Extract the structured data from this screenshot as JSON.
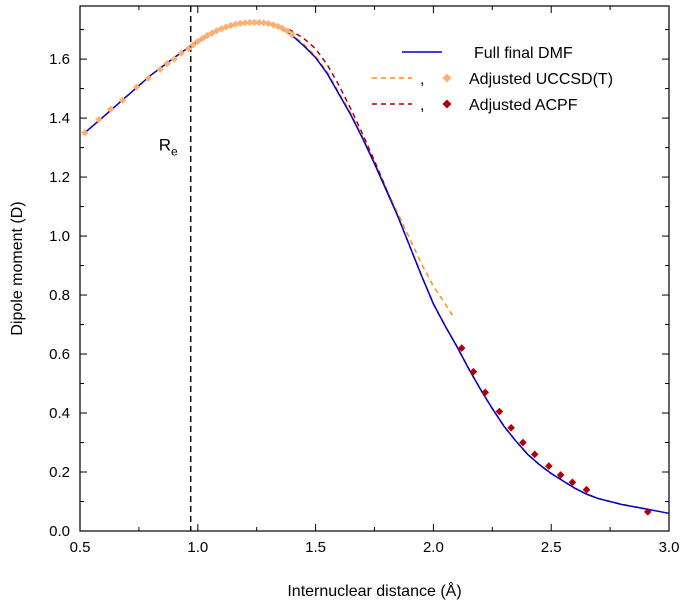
{
  "chart_data": {
    "type": "line",
    "xlabel": "Internuclear distance (Å)",
    "ylabel": "Dipole moment (D)",
    "xlim": [
      0.5,
      3.0
    ],
    "ylim": [
      0.0,
      1.78
    ],
    "x_ticks": [
      "0.5",
      "1.0",
      "1.5",
      "2.0",
      "2.5",
      "3.0"
    ],
    "y_ticks": [
      "0.0",
      "0.2",
      "0.4",
      "0.6",
      "0.8",
      "1.0",
      "1.2",
      "1.4",
      "1.6"
    ],
    "grid": false,
    "legend_position": "top-right",
    "legend": {
      "full": "Full final DMF",
      "comma1": ",",
      "uccsd": "Adjusted UCCSD(T)",
      "comma2": ",",
      "acpf": "Adjusted ACPF"
    },
    "colors": {
      "full": "#0000cc",
      "uccsd_line": "#ff8c1a",
      "uccsd_marker": "#ffb070",
      "acpf_line": "#b00000",
      "acpf_marker": "#b00000"
    },
    "annotation": {
      "label": "R",
      "subscript": "e",
      "x": 0.97
    },
    "series": [
      {
        "name": "Full final DMF",
        "style": "solid",
        "x": [
          0.52,
          0.6,
          0.7,
          0.8,
          0.9,
          0.97,
          1.05,
          1.1,
          1.15,
          1.2,
          1.25,
          1.3,
          1.35,
          1.4,
          1.45,
          1.5,
          1.55,
          1.6,
          1.65,
          1.7,
          1.75,
          1.8,
          1.85,
          1.9,
          1.95,
          2.0,
          2.05,
          2.1,
          2.15,
          2.2,
          2.25,
          2.3,
          2.35,
          2.4,
          2.45,
          2.5,
          2.55,
          2.6,
          2.65,
          2.7,
          2.8,
          2.9,
          3.0
        ],
        "y": [
          1.35,
          1.405,
          1.475,
          1.545,
          1.605,
          1.645,
          1.685,
          1.703,
          1.715,
          1.722,
          1.724,
          1.72,
          1.705,
          1.68,
          1.645,
          1.605,
          1.55,
          1.48,
          1.41,
          1.33,
          1.245,
          1.155,
          1.065,
          0.965,
          0.865,
          0.77,
          0.695,
          0.625,
          0.55,
          0.48,
          0.415,
          0.355,
          0.305,
          0.26,
          0.225,
          0.195,
          0.17,
          0.145,
          0.125,
          0.11,
          0.09,
          0.075,
          0.06
        ]
      },
      {
        "name": "Adjusted UCCSD(T)",
        "style": "dashed",
        "x": [
          0.52,
          0.6,
          0.7,
          0.8,
          0.9,
          0.97,
          1.05,
          1.1,
          1.15,
          1.2,
          1.25,
          1.3,
          1.35,
          1.4,
          1.45,
          1.5,
          1.55,
          1.6,
          1.65,
          1.7,
          1.75,
          1.8,
          1.85,
          1.9,
          1.95,
          2.0,
          2.05,
          2.09
        ],
        "y": [
          1.35,
          1.405,
          1.475,
          1.545,
          1.605,
          1.645,
          1.685,
          1.703,
          1.715,
          1.722,
          1.724,
          1.72,
          1.706,
          1.683,
          1.65,
          1.61,
          1.555,
          1.485,
          1.415,
          1.335,
          1.25,
          1.16,
          1.075,
          0.99,
          0.905,
          0.83,
          0.77,
          0.72
        ]
      },
      {
        "name": "Adjusted ACPF",
        "style": "dashed",
        "x": [
          1.35,
          1.4,
          1.45,
          1.5,
          1.55,
          1.6,
          1.65,
          1.7,
          1.75,
          1.8,
          1.85,
          1.9,
          1.95,
          2.0,
          2.05,
          2.1,
          2.15,
          2.2,
          2.25,
          2.3,
          2.35,
          2.4,
          2.45,
          2.5,
          2.55,
          2.6,
          2.65,
          2.7,
          2.8,
          2.9
        ],
        "y": [
          1.712,
          1.695,
          1.67,
          1.635,
          1.58,
          1.51,
          1.43,
          1.345,
          1.255,
          1.16,
          1.065,
          0.965,
          0.865,
          0.77,
          0.695,
          0.625,
          0.55,
          0.48,
          0.415,
          0.355,
          0.305,
          0.26,
          0.225,
          0.195,
          0.17,
          0.145,
          0.125,
          0.11,
          0.09,
          0.075
        ]
      },
      {
        "name": "Adjusted UCCSD(T) points",
        "style": "markers",
        "x": [
          0.52,
          0.58,
          0.63,
          0.68,
          0.74,
          0.79,
          0.84,
          0.87,
          0.9,
          0.93,
          0.96,
          0.98,
          1.0,
          1.02,
          1.04,
          1.06,
          1.08,
          1.1,
          1.12,
          1.14,
          1.16,
          1.18,
          1.2,
          1.22,
          1.24,
          1.26,
          1.28,
          1.3,
          1.32,
          1.34,
          1.36,
          1.38,
          1.4
        ],
        "y": [
          1.35,
          1.395,
          1.43,
          1.46,
          1.505,
          1.535,
          1.565,
          1.585,
          1.6,
          1.62,
          1.635,
          1.648,
          1.66,
          1.67,
          1.68,
          1.688,
          1.696,
          1.703,
          1.709,
          1.714,
          1.718,
          1.721,
          1.723,
          1.724,
          1.724,
          1.724,
          1.723,
          1.72,
          1.716,
          1.711,
          1.704,
          1.695,
          1.683
        ]
      },
      {
        "name": "Adjusted ACPF points",
        "style": "markers",
        "x": [
          2.12,
          2.17,
          2.22,
          2.28,
          2.33,
          2.38,
          2.43,
          2.49,
          2.54,
          2.59,
          2.65,
          2.91
        ],
        "y": [
          0.62,
          0.54,
          0.47,
          0.405,
          0.35,
          0.3,
          0.26,
          0.22,
          0.19,
          0.165,
          0.14,
          0.065
        ]
      }
    ]
  }
}
